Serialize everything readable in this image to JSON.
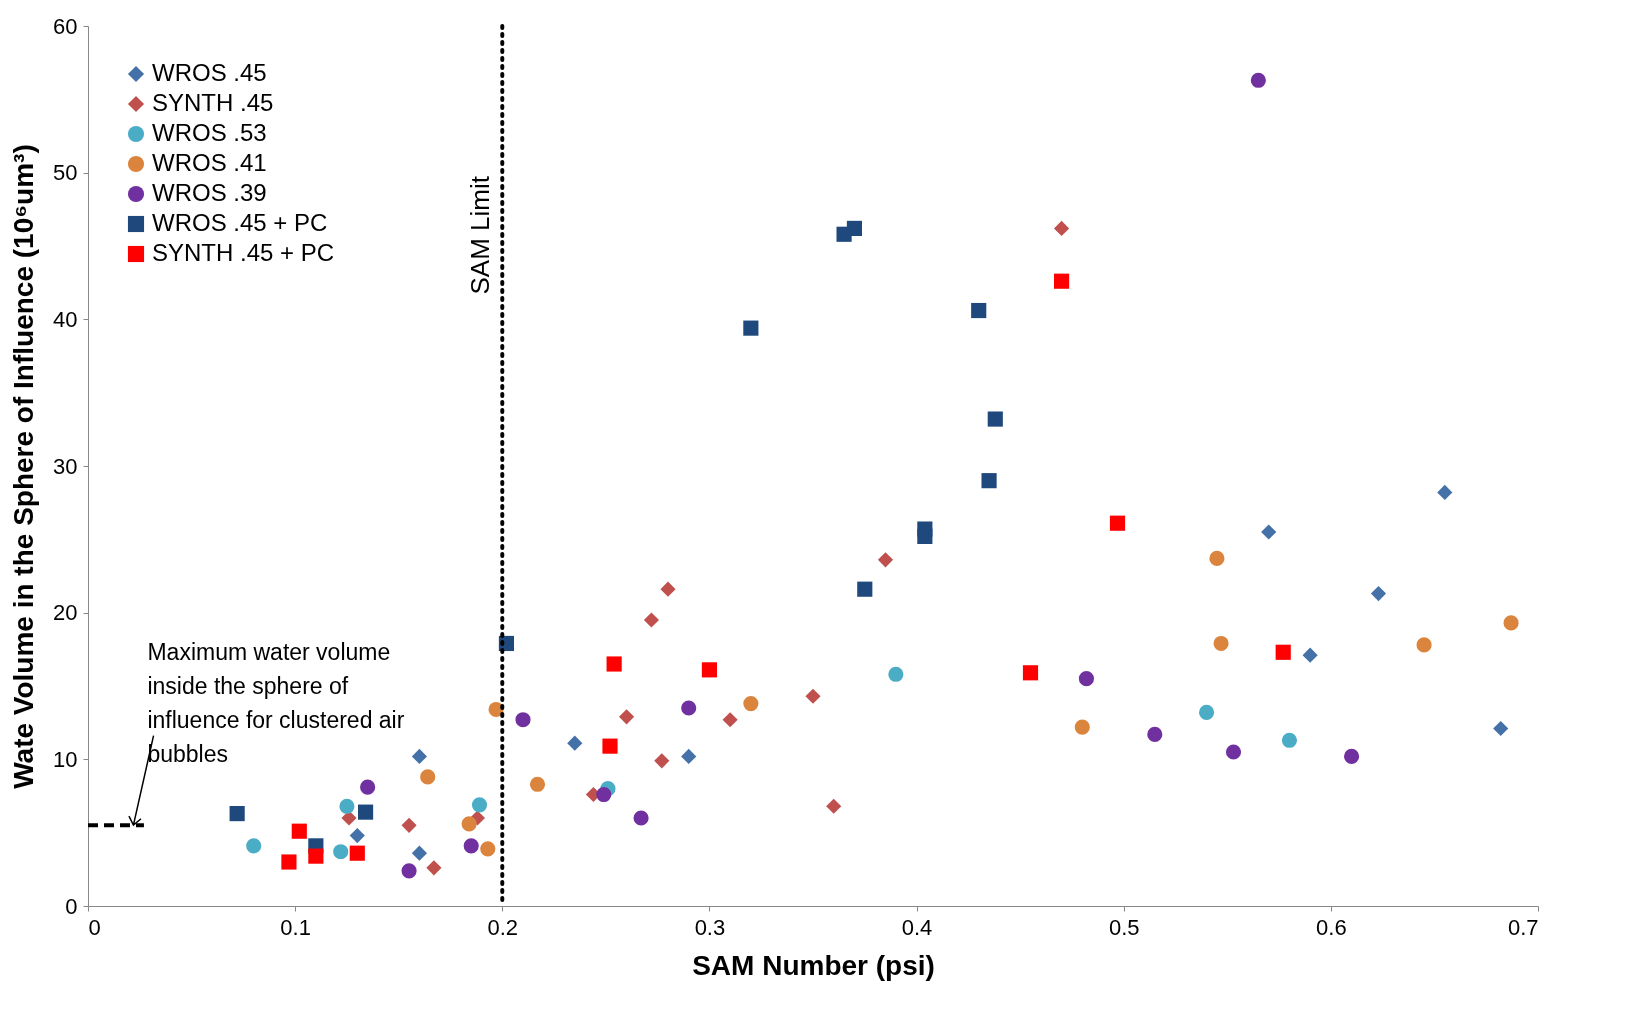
{
  "chart_data": {
    "type": "scatter",
    "xlabel": "SAM Number (psi)",
    "ylabel": "Wate Volume in the Sphere of Influence (10⁶um³)",
    "xlim": [
      0,
      0.7
    ],
    "xticks": [
      0,
      0.1,
      0.2,
      0.3,
      0.4,
      0.5,
      0.6,
      0.7
    ],
    "ylim": [
      0,
      60
    ],
    "yticks": [
      0,
      10,
      20,
      30,
      40,
      50,
      60
    ],
    "grid": false,
    "legend": "top left",
    "series": [
      {
        "name": "WROS .45",
        "color": "#4472a8",
        "marker": "diamond",
        "x": [
          0.13,
          0.16,
          0.16,
          0.235,
          0.29,
          0.57,
          0.59,
          0.623,
          0.655,
          0.682
        ],
        "values": [
          4.8,
          10.2,
          3.6,
          11.1,
          10.2,
          25.5,
          17.1,
          21.3,
          28.2,
          12.1
        ]
      },
      {
        "name": "SYNTH .45",
        "color": "#c0504d",
        "marker": "diamond",
        "x": [
          0.126,
          0.155,
          0.167,
          0.188,
          0.244,
          0.26,
          0.272,
          0.28,
          0.277,
          0.31,
          0.35,
          0.36,
          0.385,
          0.47
        ],
        "values": [
          6.0,
          5.5,
          2.6,
          6.0,
          7.6,
          12.9,
          19.5,
          21.6,
          9.9,
          12.7,
          14.3,
          6.8,
          23.6,
          46.2
        ]
      },
      {
        "name": "WROS .53",
        "color": "#4bacc6",
        "marker": "circle",
        "x": [
          0.08,
          0.125,
          0.122,
          0.189,
          0.251,
          0.39,
          0.54,
          0.58
        ],
        "values": [
          4.1,
          6.8,
          3.7,
          6.9,
          8.0,
          15.8,
          13.2,
          11.3
        ]
      },
      {
        "name": "WROS .41",
        "color": "#db843d",
        "marker": "circle",
        "x": [
          0.164,
          0.184,
          0.193,
          0.197,
          0.217,
          0.32,
          0.48,
          0.545,
          0.547,
          0.645,
          0.687
        ],
        "values": [
          8.8,
          5.6,
          3.9,
          13.4,
          8.3,
          13.8,
          12.2,
          23.7,
          17.9,
          17.8,
          19.3
        ]
      },
      {
        "name": "WROS .39",
        "color": "#7030a0",
        "marker": "circle",
        "x": [
          0.155,
          0.135,
          0.185,
          0.21,
          0.249,
          0.267,
          0.29,
          0.482,
          0.515,
          0.553,
          0.565,
          0.61
        ],
        "values": [
          2.4,
          8.1,
          4.1,
          12.7,
          7.6,
          6.0,
          13.5,
          15.5,
          11.7,
          10.5,
          56.3,
          10.2
        ]
      },
      {
        "name": "WROS .45 + PC",
        "color": "#1f497d",
        "marker": "square",
        "x": [
          0.072,
          0.11,
          0.134,
          0.202,
          0.32,
          0.365,
          0.37,
          0.43,
          0.438,
          0.435,
          0.404,
          0.404,
          0.375
        ],
        "values": [
          6.3,
          4.1,
          6.4,
          17.9,
          39.4,
          45.8,
          46.2,
          40.6,
          33.2,
          29.0,
          25.7,
          25.2,
          21.6
        ]
      },
      {
        "name": "SYNTH .45 + PC",
        "color": "#ff0000",
        "marker": "square",
        "x": [
          0.097,
          0.102,
          0.11,
          0.13,
          0.252,
          0.254,
          0.3,
          0.455,
          0.47,
          0.497,
          0.577
        ],
        "values": [
          3.0,
          5.1,
          3.4,
          3.6,
          10.9,
          16.5,
          16.1,
          15.9,
          42.6,
          26.1,
          17.3
        ]
      },
      {
        "type": "line",
        "color": "#000000",
        "line_style": "dashed",
        "x": [
          0,
          0.027
        ],
        "values": [
          5.5,
          5.5
        ]
      }
    ],
    "ref_lines": [
      {
        "axis": "x",
        "value": 0.2,
        "label": "SAM Limit",
        "line_style": "dotted",
        "color": "#000000"
      }
    ],
    "annotations": [
      {
        "text": "Maximum water volume\ninside the sphere of\ninfluence for clustered air\nbubbles",
        "x": 0.02,
        "y": 5.5
      }
    ]
  }
}
